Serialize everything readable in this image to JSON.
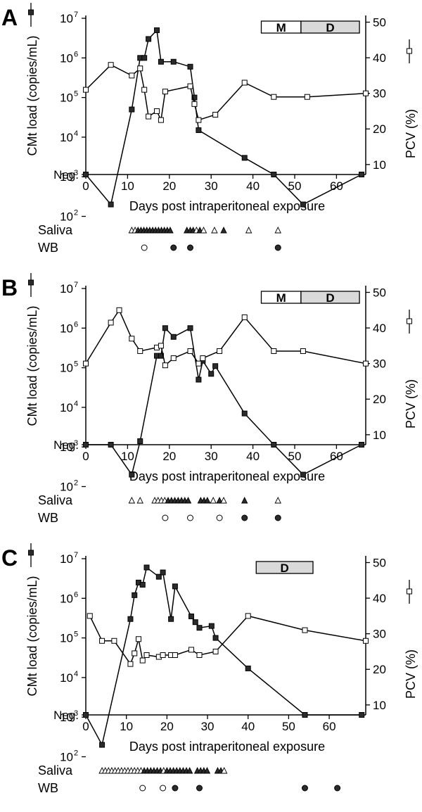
{
  "figure": {
    "panel_labels": [
      "A",
      "B",
      "C"
    ],
    "row_labels": {
      "saliva": "Saliva",
      "wb": "WB"
    },
    "colors": {
      "line": "#000000",
      "shade": "#d9d9d9",
      "positive": "#2b2b2b",
      "negative": "#ffffff"
    }
  },
  "chart_data": [
    {
      "panel": "A",
      "type": "line",
      "xlabel": "Days post intraperitoneal exposure",
      "ylabel_left": "CMt load (copies/mL)",
      "ylabel_right": "PCV (%)",
      "x_ticks": [
        "0",
        "10",
        "20",
        "30",
        "40",
        "50",
        "60"
      ],
      "y_left_ticks": [
        "Neg.",
        "10",
        "10",
        "10",
        "10",
        "10",
        "10"
      ],
      "y_left_exponents": [
        "",
        "2",
        "3",
        "4",
        "5",
        "6",
        "7"
      ],
      "y_left_scale": "log10, Neg. below 10^2",
      "y_right_ticks": [
        "10",
        "20",
        "30",
        "40",
        "50"
      ],
      "xlim": [
        0,
        67
      ],
      "y_right_lim": [
        7,
        50
      ],
      "bars": [
        {
          "label": "M",
          "from": 42,
          "to": 51.5
        },
        {
          "label": "D",
          "from": 51.5,
          "to": 65.5
        }
      ],
      "series": [
        {
          "name": "CMt load",
          "axis": "left",
          "marker": "filled-square",
          "x": [
            0,
            6,
            11,
            13,
            14,
            15,
            17,
            18,
            21,
            25,
            26,
            27,
            38,
            45,
            52,
            66
          ],
          "y": [
            "Neg.",
            200,
            50000,
            1000000,
            1000000,
            3000000,
            5000000,
            800000,
            800000,
            600000,
            100000,
            15000,
            3000,
            "Neg.",
            200,
            "Neg."
          ]
        },
        {
          "name": "PCV",
          "axis": "right",
          "marker": "open-square",
          "x": [
            0,
            6,
            11,
            13,
            14,
            15,
            17,
            18,
            19,
            25,
            26,
            27,
            31,
            38,
            45,
            53,
            67
          ],
          "y": [
            31,
            38,
            35,
            37,
            31,
            23.5,
            25,
            22.5,
            30.5,
            32,
            27,
            22.5,
            24,
            33,
            29,
            29,
            30
          ]
        }
      ],
      "saliva": {
        "days": [
          11,
          11.8,
          12.5,
          13.2,
          13.9,
          14.6,
          15.3,
          16,
          16.7,
          17.4,
          18.1,
          18.8,
          19.5,
          20.2,
          24.2,
          25,
          25.7,
          26.5,
          27.3,
          28.2,
          30.8,
          33,
          39,
          46
        ],
        "positive": [
          false,
          false,
          true,
          true,
          true,
          true,
          true,
          true,
          true,
          true,
          true,
          true,
          true,
          true,
          true,
          true,
          true,
          false,
          true,
          false,
          false,
          true,
          false,
          false
        ]
      },
      "wb": {
        "days": [
          14,
          21,
          25,
          46
        ],
        "positive": [
          false,
          true,
          true,
          true
        ]
      }
    },
    {
      "panel": "B",
      "type": "line",
      "xlabel": "Days post intraperitoneal exposure",
      "ylabel_left": "CMt load (copies/mL)",
      "ylabel_right": "PCV (%)",
      "x_ticks": [
        "0",
        "10",
        "20",
        "30",
        "40",
        "50",
        "60"
      ],
      "y_left_ticks": [
        "Neg.",
        "10",
        "10",
        "10",
        "10",
        "10",
        "10"
      ],
      "y_left_exponents": [
        "",
        "2",
        "3",
        "4",
        "5",
        "6",
        "7"
      ],
      "y_left_scale": "log10, Neg. below 10^2",
      "y_right_ticks": [
        "10",
        "20",
        "30",
        "40",
        "50"
      ],
      "xlim": [
        0,
        67
      ],
      "y_right_lim": [
        7,
        50
      ],
      "bars": [
        {
          "label": "M",
          "from": 42,
          "to": 51.5
        },
        {
          "label": "D",
          "from": 51.5,
          "to": 65.5
        }
      ],
      "series": [
        {
          "name": "CMt load",
          "axis": "left",
          "marker": "filled-square",
          "x": [
            0,
            6,
            11,
            13,
            17,
            18,
            19,
            21,
            25,
            27,
            28,
            30,
            31,
            38,
            45,
            52,
            66
          ],
          "y": [
            "Neg.",
            "Neg.",
            200,
            1400,
            200000,
            200000,
            1000000,
            600000,
            1000000,
            50000,
            150000,
            70000,
            110000,
            7000,
            "Neg.",
            200,
            "Neg."
          ]
        },
        {
          "name": "PCV",
          "axis": "right",
          "marker": "open-square",
          "x": [
            0,
            6,
            8,
            11,
            13,
            17,
            18,
            19,
            21,
            25,
            27,
            28,
            32,
            38,
            45,
            52,
            67
          ],
          "y": [
            30,
            41.5,
            45,
            37,
            33.5,
            34.5,
            35,
            29.5,
            31.5,
            33.5,
            30,
            31.5,
            33.5,
            43,
            33.5,
            33.5,
            30
          ]
        }
      ],
      "saliva": {
        "days": [
          11,
          13,
          16.5,
          17.3,
          18.1,
          18.9,
          19.7,
          20.5,
          21.3,
          22.1,
          22.9,
          23.7,
          24.5,
          27.5,
          28.3,
          29.1,
          30.5,
          32,
          33,
          38,
          46
        ],
        "positive": [
          false,
          false,
          false,
          false,
          false,
          false,
          true,
          true,
          true,
          true,
          true,
          true,
          true,
          true,
          true,
          true,
          false,
          true,
          false,
          true,
          false
        ]
      },
      "wb": {
        "days": [
          19,
          25,
          32,
          38,
          46
        ],
        "positive": [
          false,
          false,
          false,
          true,
          true
        ]
      }
    },
    {
      "panel": "C",
      "type": "line",
      "xlabel": "Days post intraperitoneal exposure",
      "ylabel_left": "CMt load (copies/mL)",
      "ylabel_right": "PCV (%)",
      "x_ticks": [
        "0",
        "10",
        "20",
        "30",
        "40",
        "50",
        "60"
      ],
      "y_left_ticks": [
        "Neg.",
        "10",
        "10",
        "10",
        "10",
        "10",
        "10"
      ],
      "y_left_exponents": [
        "",
        "2",
        "3",
        "4",
        "5",
        "6",
        "7"
      ],
      "y_left_scale": "log10, Neg. below 10^2",
      "y_right_ticks": [
        "10",
        "20",
        "30",
        "40",
        "50"
      ],
      "xlim": [
        0,
        69
      ],
      "y_right_lim": [
        7,
        50
      ],
      "bars": [
        {
          "label": "D",
          "from": 42,
          "to": 56
        }
      ],
      "series": [
        {
          "name": "CMt load",
          "axis": "left",
          "marker": "filled-square",
          "x": [
            0,
            4,
            11,
            12,
            13,
            14,
            15,
            18,
            19,
            21,
            22,
            26,
            27,
            28,
            31,
            32,
            40,
            54,
            68
          ],
          "y": [
            "Neg.",
            200,
            300000,
            1200000,
            2500000,
            2200000,
            6000000,
            3500000,
            4500000,
            300000,
            2000000,
            350000,
            250000,
            180000,
            200000,
            100000,
            17000,
            "Neg.",
            "Neg."
          ]
        },
        {
          "name": "PCV",
          "axis": "right",
          "marker": "open-square",
          "x": [
            1,
            4,
            7,
            11,
            12,
            13,
            14,
            15,
            18,
            19,
            21,
            22,
            26,
            28,
            32,
            40,
            54,
            69
          ],
          "y": [
            35,
            28,
            28,
            21.5,
            24.5,
            28.5,
            22.5,
            24,
            23.5,
            24,
            24,
            24,
            25.5,
            24,
            25,
            35,
            31,
            28
          ]
        }
      ],
      "saliva": {
        "days": [
          4,
          4.8,
          5.6,
          6.4,
          7.2,
          8,
          8.8,
          9.6,
          10.4,
          11.2,
          12,
          12.8,
          13.6,
          14.4,
          15.2,
          16,
          16.8,
          17.6,
          18.4,
          19.2,
          20,
          20.8,
          21.6,
          22.4,
          23.2,
          24,
          24.8,
          25.6,
          27.5,
          28.3,
          29.1,
          29.9,
          32.5,
          33.3,
          34.1
        ],
        "positive": [
          false,
          false,
          false,
          false,
          false,
          false,
          false,
          false,
          false,
          false,
          false,
          false,
          false,
          true,
          true,
          true,
          true,
          true,
          true,
          false,
          true,
          true,
          true,
          true,
          true,
          true,
          true,
          true,
          true,
          true,
          true,
          true,
          true,
          true,
          false
        ]
      },
      "wb": {
        "days": [
          14,
          19,
          22,
          28,
          54,
          62
        ],
        "positive": [
          false,
          false,
          true,
          true,
          true,
          true
        ]
      }
    }
  ]
}
